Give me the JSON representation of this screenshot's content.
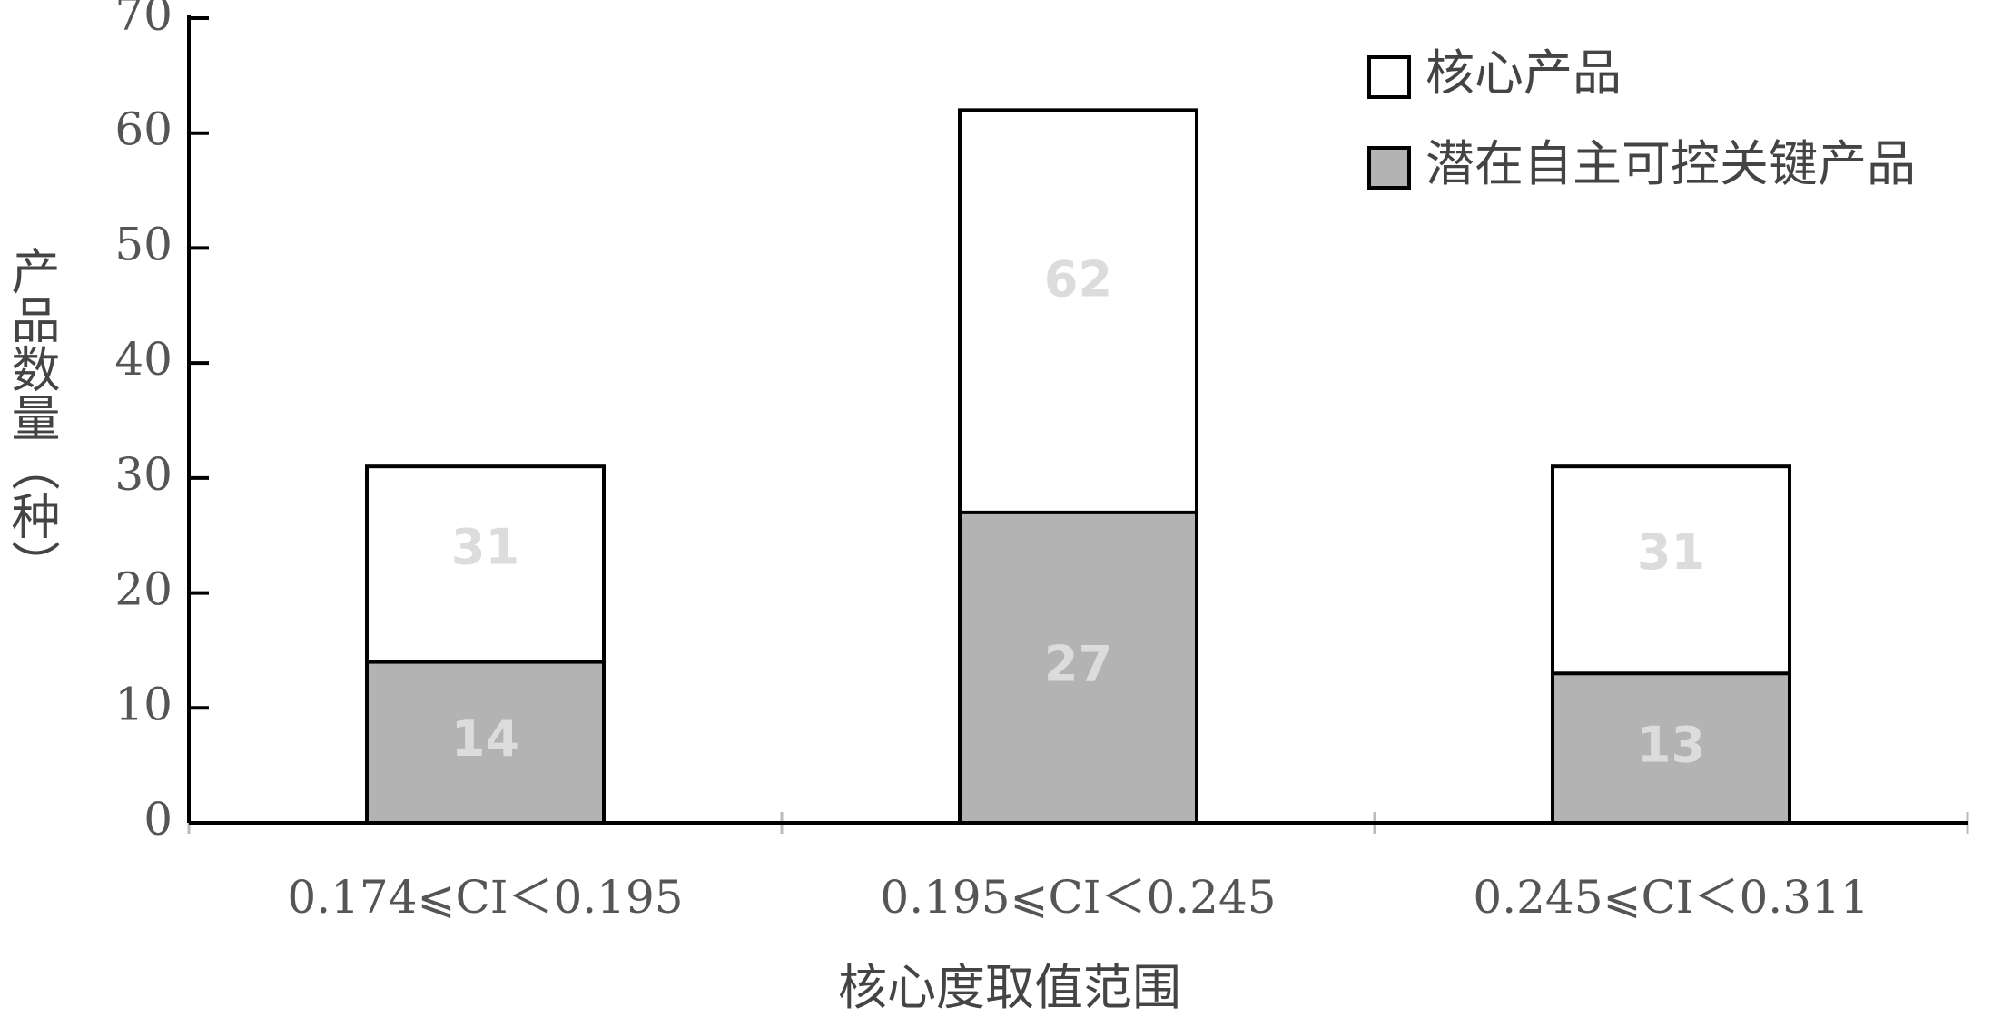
{
  "chart_data": {
    "type": "bar",
    "categories": [
      "0.174⩽CI＜0.195",
      "0.195⩽CI＜0.245",
      "0.245⩽CI＜0.311"
    ],
    "series": [
      {
        "name": "核心产品",
        "color": "#ffffff",
        "values": [
          31,
          62,
          31
        ]
      },
      {
        "name": "潜在自主可控关键产品",
        "color": "#b3b3b3",
        "values": [
          14,
          27,
          13
        ]
      }
    ],
    "ylim": [
      0,
      70
    ],
    "yticks": [
      0,
      10,
      20,
      30,
      40,
      50,
      60,
      70
    ],
    "xlabel": "核心度取值范围",
    "ylabel": "产品数量（种）",
    "legend": "upper right"
  }
}
